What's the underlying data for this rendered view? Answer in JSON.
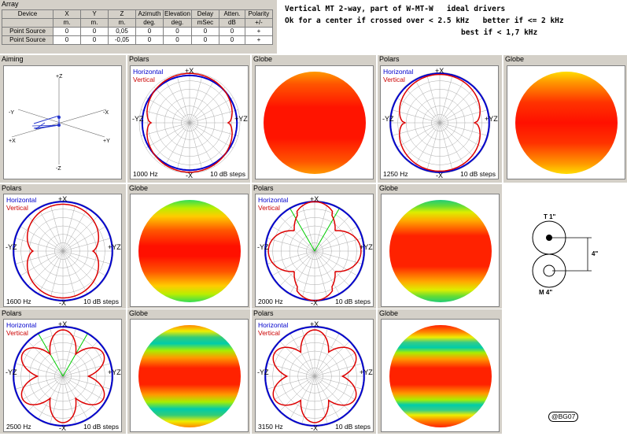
{
  "array": {
    "title": "Array",
    "headers": [
      "Device",
      "X",
      "Y",
      "Z",
      "Azimuth",
      "Elevation",
      "Delay",
      "Atten.",
      "Polarity"
    ],
    "units": [
      "",
      "m.",
      "m.",
      "m.",
      "deg.",
      "deg.",
      "mSec",
      "dB",
      "+/-"
    ],
    "rows": [
      [
        "Point Source",
        "0",
        "0",
        "0,05",
        "0",
        "0",
        "0",
        "0",
        "+"
      ],
      [
        "Point Source",
        "0",
        "0",
        "-0,05",
        "0",
        "0",
        "0",
        "0",
        "+"
      ]
    ]
  },
  "info": {
    "line1": "Vertical MT 2-way, part of W-MT-W   ideal drivers",
    "line2": "Ok for a center if crossed over < 2.5 kHz   better if <= 2 kHz",
    "line3": "best if < 1,7 kHz"
  },
  "aiming": {
    "title": "Aiming",
    "labels": {
      "pz": "+Z",
      "mz": "-Z",
      "my": "-Y",
      "py": "+Y",
      "mx": "-X",
      "px": "+X"
    }
  },
  "common": {
    "polars_title": "Polars",
    "globe_title": "Globe",
    "horizontal": "Horizontal",
    "vertical": "Vertical",
    "steps": "10 dB steps",
    "px": "+X",
    "mx": "-X",
    "myz": "-YZ",
    "pyz": "+YZ"
  },
  "polars": [
    {
      "freq": "1000 Hz"
    },
    {
      "freq": "1250 Hz"
    },
    {
      "freq": "1600 Hz"
    },
    {
      "freq": "2000 Hz"
    },
    {
      "freq": "2500 Hz"
    },
    {
      "freq": "3150 Hz"
    }
  ],
  "drivers": {
    "tweeter": "T 1\"",
    "mid": "M 4\"",
    "spacing": "4\""
  },
  "credit": "@BG07",
  "colors": {
    "horizontal": "#0000cc",
    "vertical": "#dd0000",
    "null_lines": "#00cc00",
    "panel_bg": "#d4d0c8"
  }
}
